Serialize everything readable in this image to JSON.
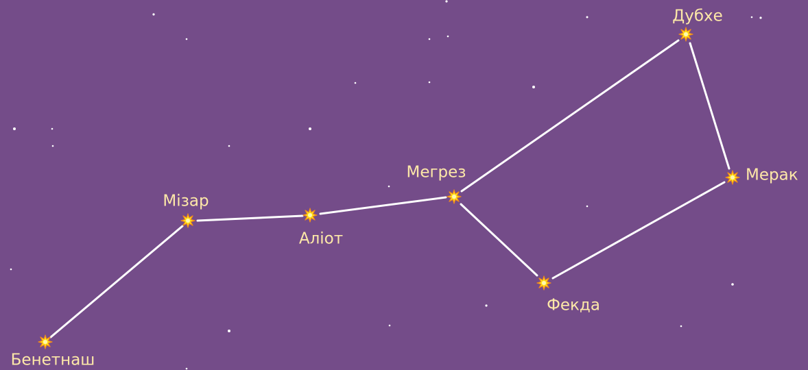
{
  "nodes": [
    {
      "label": "Дубхе"
    },
    {
      "label": "Мерак"
    },
    {
      "label": "Фекда"
    },
    {
      "label": "Мегрез"
    },
    {
      "label": "Аліот"
    },
    {
      "label": "Мізар"
    },
    {
      "label": "Бенетнаш"
    }
  ]
}
